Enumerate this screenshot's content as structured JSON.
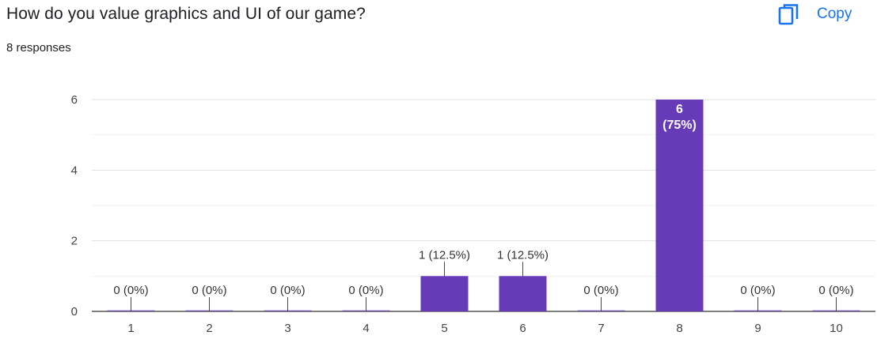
{
  "question": {
    "title": "How do you value graphics and UI of our game?",
    "response_count": "8 responses"
  },
  "copy_button": {
    "label": "Copy",
    "icon": "copy-icon",
    "color": "#1a73e8"
  },
  "chart_data": {
    "type": "bar",
    "categories": [
      "1",
      "2",
      "3",
      "4",
      "5",
      "6",
      "7",
      "8",
      "9",
      "10"
    ],
    "values": [
      0,
      0,
      0,
      0,
      1,
      1,
      0,
      6,
      0,
      0
    ],
    "data_labels": [
      "0 (0%)",
      "0 (0%)",
      "0 (0%)",
      "0 (0%)",
      "1 (12.5%)",
      "1 (12.5%)",
      "0 (0%)",
      "6\n(75%)",
      "0 (0%)",
      "0 (0%)"
    ],
    "yticks": [
      0,
      2,
      4,
      6
    ],
    "ylim": [
      0,
      6
    ],
    "grid": true,
    "bar_color": "#673ab7",
    "title": "",
    "xlabel": "",
    "ylabel": ""
  }
}
